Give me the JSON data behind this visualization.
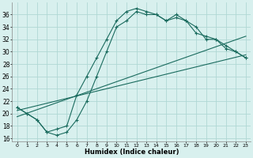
{
  "xlabel": "Humidex (Indice chaleur)",
  "bg_color": "#d8f0ee",
  "grid_color": "#b0d8d4",
  "line_color": "#1a6b5e",
  "xlim": [
    -0.5,
    23.5
  ],
  "ylim": [
    15.5,
    38
  ],
  "yticks": [
    16,
    18,
    20,
    22,
    24,
    26,
    28,
    30,
    32,
    34,
    36
  ],
  "xticks": [
    0,
    1,
    2,
    3,
    4,
    5,
    6,
    7,
    8,
    9,
    10,
    11,
    12,
    13,
    14,
    15,
    16,
    17,
    18,
    19,
    20,
    21,
    22,
    23
  ],
  "curve1_x": [
    0,
    1,
    2,
    3,
    4,
    5,
    6,
    7,
    8,
    9,
    10,
    11,
    12,
    13,
    14,
    15,
    16,
    17,
    18,
    19,
    20,
    21,
    22,
    23
  ],
  "curve1_y": [
    21,
    20,
    19,
    17,
    17.5,
    18,
    23,
    26,
    29,
    32,
    35,
    36.5,
    37,
    36.5,
    36,
    35,
    36,
    35,
    34,
    32,
    32,
    31,
    30,
    29
  ],
  "curve2_x": [
    0,
    1,
    2,
    3,
    4,
    5,
    6,
    7,
    8,
    9,
    10,
    11,
    12,
    13,
    14,
    15,
    16,
    17,
    18,
    19,
    20,
    21,
    22,
    23
  ],
  "curve2_y": [
    21,
    20,
    19,
    17,
    16.5,
    17,
    19,
    22,
    26,
    30,
    34,
    35,
    36.5,
    36,
    36,
    35,
    35.5,
    35,
    33,
    32.5,
    32,
    30.5,
    30,
    29
  ],
  "line1_x": [
    0,
    23
  ],
  "line1_y": [
    20.5,
    29.5
  ],
  "line2_x": [
    0,
    23
  ],
  "line2_y": [
    19.5,
    32.5
  ]
}
